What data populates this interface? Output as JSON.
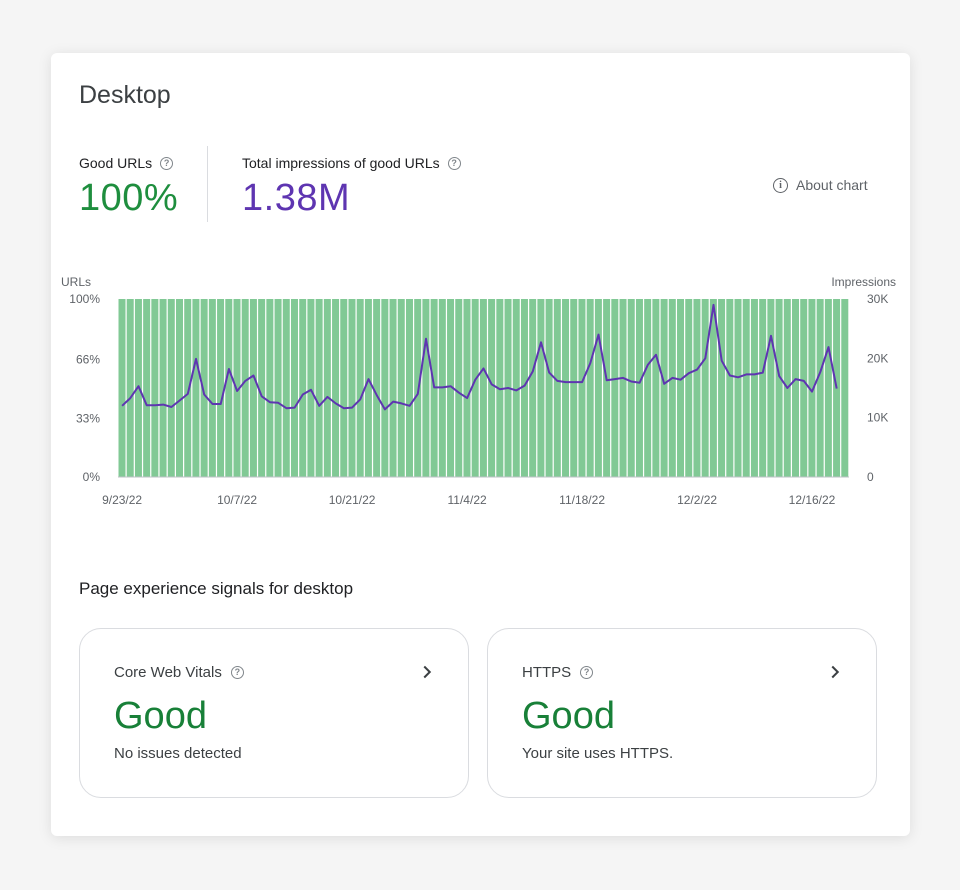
{
  "title": "Desktop",
  "metrics": {
    "good_urls": {
      "label": "Good URLs",
      "value": "100%",
      "color": "#1e8e3e"
    },
    "impressions": {
      "label": "Total impressions of good URLs",
      "value": "1.38M",
      "color": "#5e35b1"
    }
  },
  "about_chart": {
    "label": "About chart",
    "icon": "info-icon"
  },
  "chart_data": {
    "type": "bar",
    "left_axis_label": "URLs",
    "right_axis_label": "Impressions",
    "left_ticks": [
      "100%",
      "66%",
      "33%",
      "0%"
    ],
    "right_ticks": [
      "30K",
      "20K",
      "10K",
      "0"
    ],
    "x_ticks": [
      {
        "label": "9/23/22",
        "day": 0
      },
      {
        "label": "10/7/22",
        "day": 14
      },
      {
        "label": "10/21/22",
        "day": 28
      },
      {
        "label": "11/4/22",
        "day": 42
      },
      {
        "label": "11/18/22",
        "day": 56
      },
      {
        "label": "12/2/22",
        "day": 70
      },
      {
        "label": "12/16/22",
        "day": 84
      }
    ],
    "colors": {
      "bars": "#81c995",
      "line": "#5e35b1"
    },
    "series": [
      {
        "name": "Good URLs",
        "axis": "left",
        "unit": "%",
        "values": [
          100,
          100,
          100,
          100,
          100,
          100,
          100,
          100,
          100,
          100,
          100,
          100,
          100,
          100,
          100,
          100,
          100,
          100,
          100,
          100,
          100,
          100,
          100,
          100,
          100,
          100,
          100,
          100,
          100,
          100,
          100,
          100,
          100,
          100,
          100,
          100,
          100,
          100,
          100,
          100,
          100,
          100,
          100,
          100,
          100,
          100,
          100,
          100,
          100,
          100,
          100,
          100,
          100,
          100,
          100,
          100,
          100,
          100,
          100,
          100,
          100,
          100,
          100,
          100,
          100,
          100,
          100,
          100,
          100,
          100,
          100,
          100,
          100,
          100,
          100,
          100,
          100,
          100,
          100,
          100,
          100,
          100,
          100,
          100,
          100,
          100,
          100,
          100,
          100
        ]
      },
      {
        "name": "Impressions",
        "axis": "right",
        "values": [
          12000,
          13300,
          15300,
          12100,
          12100,
          12200,
          11800,
          12900,
          14000,
          19900,
          13900,
          12300,
          12300,
          18200,
          14500,
          16200,
          17100,
          13600,
          12600,
          12500,
          11600,
          11700,
          13900,
          14700,
          12000,
          13500,
          12400,
          11600,
          11700,
          13100,
          16500,
          13800,
          11400,
          12700,
          12400,
          12000,
          14000,
          23300,
          15100,
          15100,
          15300,
          14200,
          13300,
          16400,
          18300,
          15600,
          14800,
          15000,
          14600,
          15400,
          17800,
          22700,
          17600,
          16200,
          16000,
          16000,
          16000,
          19200,
          24000,
          16300,
          16500,
          16700,
          16100,
          15900,
          18900,
          20600,
          15700,
          16700,
          16400,
          17500,
          18100,
          20000,
          29000,
          19600,
          17100,
          16800,
          17300,
          17300,
          17600,
          23800,
          17000,
          15000,
          16500,
          16200,
          14400,
          17700,
          21900,
          14900
        ]
      }
    ]
  },
  "section_title": "Page experience signals for desktop",
  "tiles": [
    {
      "label": "Core Web Vitals",
      "value": "Good",
      "subtitle": "No issues detected"
    },
    {
      "label": "HTTPS",
      "value": "Good",
      "subtitle": "Your site uses HTTPS."
    }
  ]
}
